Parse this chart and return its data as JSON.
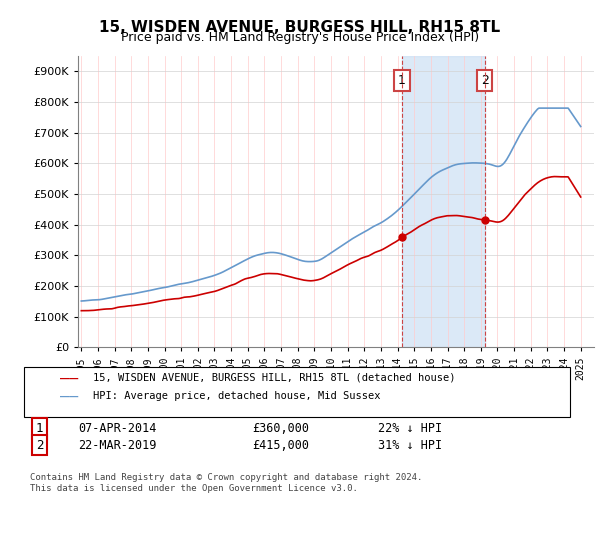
{
  "title": "15, WISDEN AVENUE, BURGESS HILL, RH15 8TL",
  "subtitle": "Price paid vs. HM Land Registry's House Price Index (HPI)",
  "legend_line1": "15, WISDEN AVENUE, BURGESS HILL, RH15 8TL (detached house)",
  "legend_line2": "HPI: Average price, detached house, Mid Sussex",
  "footnote": "Contains HM Land Registry data © Crown copyright and database right 2024.\nThis data is licensed under the Open Government Licence v3.0.",
  "transactions": [
    {
      "num": "1",
      "date": "07-APR-2014",
      "price": "£360,000",
      "hpi": "22% ↓ HPI"
    },
    {
      "num": "2",
      "date": "22-MAR-2019",
      "price": "£415,000",
      "hpi": "31% ↓ HPI"
    }
  ],
  "red_color": "#cc0000",
  "blue_color": "#6699cc",
  "shading_color": "#cce0f5",
  "marker1_year": 2014.27,
  "marker2_year": 2019.23,
  "ylim": [
    0,
    950000
  ],
  "xlim_start": 1995,
  "xlim_end": 2025.5
}
